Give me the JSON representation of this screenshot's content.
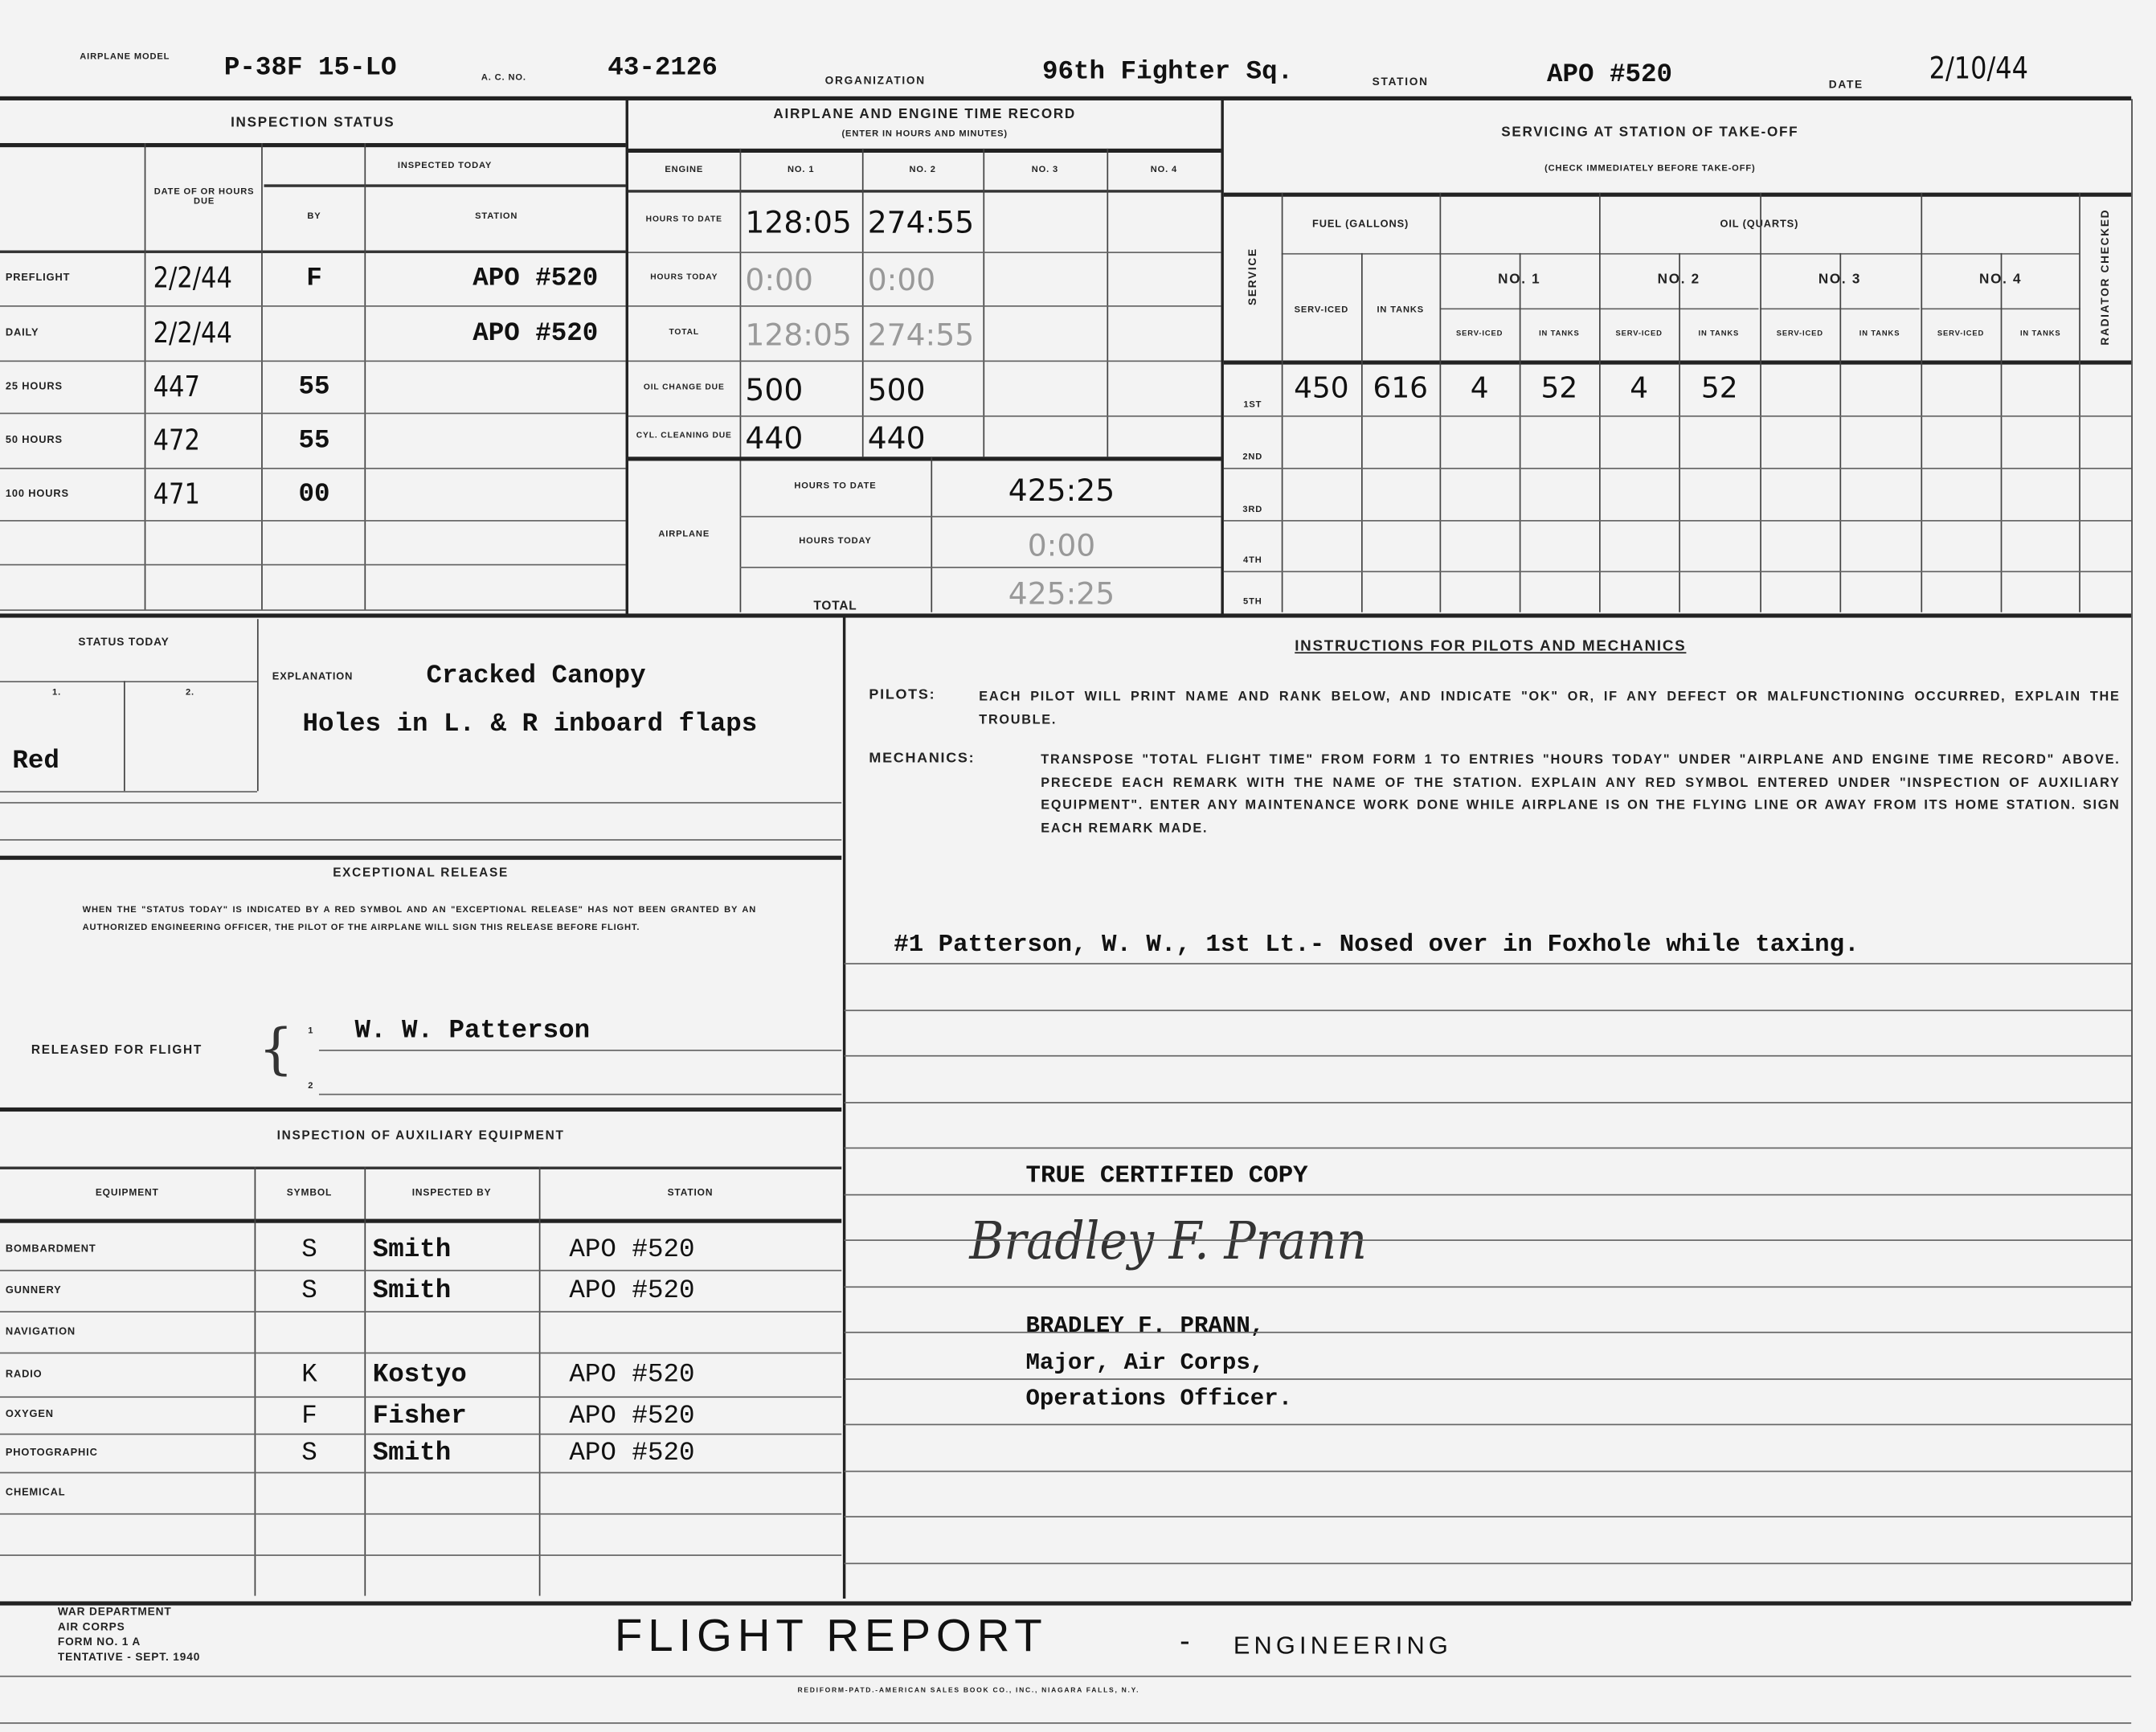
{
  "header": {
    "airplane_model_label": "AIRPLANE MODEL",
    "airplane_model": "P-38F 15-LO",
    "ac_no_label": "A. C. NO.",
    "ac_no": "43-2126",
    "organization_label": "ORGANIZATION",
    "organization": "96th Fighter Sq.",
    "station_label": "STATION",
    "station": "APO #520",
    "date_label": "DATE",
    "date": "2/10/44"
  },
  "inspection_status": {
    "title": "INSPECTION STATUS",
    "col_due": "DATE OF OR HOURS DUE",
    "col_inspected_today": "INSPECTED TODAY",
    "col_by": "BY",
    "col_station": "STATION",
    "rows": [
      {
        "label": "PREFLIGHT",
        "due": "2/2/44",
        "by": "F",
        "station": "APO #520"
      },
      {
        "label": "DAILY",
        "due": "2/2/44",
        "by": "",
        "station": "APO #520"
      },
      {
        "label": "25 HOURS",
        "due": "447",
        "by": "55",
        "station": ""
      },
      {
        "label": "50 HOURS",
        "due": "472",
        "by": "55",
        "station": ""
      },
      {
        "label": "100 HOURS",
        "due": "471",
        "by": "00",
        "station": ""
      }
    ]
  },
  "time_record": {
    "title": "AIRPLANE AND ENGINE TIME RECORD",
    "subtitle": "(ENTER IN HOURS AND MINUTES)",
    "col_engine": "ENGINE",
    "engines": [
      "NO. 1",
      "NO. 2",
      "NO. 3",
      "NO. 4"
    ],
    "rows": [
      {
        "label": "HOURS TO DATE",
        "values": [
          "128:05",
          "274:55",
          "",
          ""
        ]
      },
      {
        "label": "HOURS TODAY",
        "values": [
          "0:00",
          "0:00",
          "",
          ""
        ]
      },
      {
        "label": "TOTAL",
        "values": [
          "128:05",
          "274:55",
          "",
          ""
        ]
      },
      {
        "label": "OIL CHANGE DUE",
        "values": [
          "500",
          "500",
          "",
          ""
        ]
      },
      {
        "label": "CYL. CLEANING DUE",
        "values": [
          "440",
          "440",
          "",
          ""
        ]
      }
    ],
    "airplane_label": "AIRPLANE",
    "airplane_rows": [
      {
        "label": "HOURS TO DATE",
        "value": "425:25"
      },
      {
        "label": "HOURS TODAY",
        "value": "0:00"
      },
      {
        "label": "TOTAL",
        "value": "425:25"
      }
    ]
  },
  "servicing": {
    "title": "SERVICING AT STATION OF TAKE-OFF",
    "subtitle": "(CHECK IMMEDIATELY BEFORE TAKE-OFF)",
    "service_label": "SERVICE",
    "fuel_label": "FUEL (GALLONS)",
    "oil_label": "OIL (QUARTS)",
    "oil_engines": [
      "NO. 1",
      "NO. 2",
      "NO. 3",
      "NO. 4"
    ],
    "serviced_label": "SERV-ICED",
    "in_tanks_label": "IN TANKS",
    "radiator_label": "RADIATOR CHECKED",
    "rows": [
      {
        "label": "1ST",
        "values": [
          "450",
          "616",
          "4",
          "52",
          "4",
          "52",
          "",
          "",
          "",
          "",
          ""
        ]
      },
      {
        "label": "2ND",
        "values": [
          "",
          "",
          "",
          "",
          "",
          "",
          "",
          "",
          "",
          "",
          ""
        ]
      },
      {
        "label": "3RD",
        "values": [
          "",
          "",
          "",
          "",
          "",
          "",
          "",
          "",
          "",
          "",
          ""
        ]
      },
      {
        "label": "4TH",
        "values": [
          "",
          "",
          "",
          "",
          "",
          "",
          "",
          "",
          "",
          "",
          ""
        ]
      },
      {
        "label": "5TH",
        "values": [
          "",
          "",
          "",
          "",
          "",
          "",
          "",
          "",
          "",
          "",
          ""
        ]
      }
    ]
  },
  "status_today": {
    "title": "STATUS TODAY",
    "col1": "1.",
    "col2": "2.",
    "value1": "Red",
    "value2": "",
    "explanation_label": "EXPLANATION",
    "explanation_line1": "Cracked Canopy",
    "explanation_line2": "Holes in L. & R inboard flaps"
  },
  "exceptional_release": {
    "title": "EXCEPTIONAL RELEASE",
    "text": "WHEN THE \"STATUS TODAY\" IS INDICATED BY A RED SYMBOL AND AN \"EXCEPTIONAL RELEASE\" HAS NOT BEEN GRANTED BY AN AUTHORIZED ENGINEERING OFFICER, THE PILOT OF THE AIRPLANE WILL SIGN THIS RELEASE BEFORE FLIGHT.",
    "released_label": "RELEASED FOR FLIGHT",
    "line1_no": "1",
    "line2_no": "2",
    "signature1": "W. W. Patterson"
  },
  "aux_equipment": {
    "title": "INSPECTION OF AUXILIARY EQUIPMENT",
    "col_equipment": "EQUIPMENT",
    "col_symbol": "SYMBOL",
    "col_inspected_by": "INSPECTED BY",
    "col_station": "STATION",
    "rows": [
      {
        "equipment": "BOMBARDMENT",
        "symbol": "S",
        "by": "Smith",
        "station": "APO #520"
      },
      {
        "equipment": "GUNNERY",
        "symbol": "S",
        "by": "Smith",
        "station": "APO #520"
      },
      {
        "equipment": "NAVIGATION",
        "symbol": "",
        "by": "",
        "station": ""
      },
      {
        "equipment": "RADIO",
        "symbol": "K",
        "by": "Kostyo",
        "station": "APO #520"
      },
      {
        "equipment": "OXYGEN",
        "symbol": "F",
        "by": "Fisher",
        "station": "APO #520"
      },
      {
        "equipment": "PHOTOGRAPHIC",
        "symbol": "S",
        "by": "Smith",
        "station": "APO #520"
      },
      {
        "equipment": "CHEMICAL",
        "symbol": "",
        "by": "",
        "station": ""
      }
    ]
  },
  "instructions": {
    "title": "INSTRUCTIONS FOR PILOTS AND MECHANICS",
    "pilots_label": "PILOTS:",
    "pilots_text": "EACH PILOT WILL PRINT NAME AND RANK BELOW, AND INDICATE \"OK\" OR, IF ANY DEFECT OR MALFUNCTIONING OCCURRED, EXPLAIN THE TROUBLE.",
    "mechanics_label": "MECHANICS:",
    "mechanics_text": "TRANSPOSE \"TOTAL FLIGHT TIME\" FROM FORM 1 TO ENTRIES \"HOURS TODAY\" UNDER \"AIRPLANE AND ENGINE TIME RECORD\" ABOVE. PRECEDE EACH REMARK WITH THE NAME OF THE STATION. EXPLAIN ANY RED SYMBOL ENTERED UNDER \"INSPECTION OF AUXILIARY EQUIPMENT\". ENTER ANY MAINTENANCE WORK DONE WHILE AIRPLANE IS ON THE FLYING LINE OR AWAY FROM ITS HOME STATION. SIGN EACH REMARK MADE.",
    "remark": "#1 Patterson, W. W., 1st Lt.- Nosed over in Foxhole while taxing."
  },
  "certification": {
    "title": "TRUE CERTIFIED COPY",
    "signature": "Bradley F. Prann",
    "name": "BRADLEY F. PRANN,",
    "rank": "Major, Air Corps,",
    "position": "Operations Officer."
  },
  "footer": {
    "dept": "WAR DEPARTMENT",
    "corps": "AIR CORPS",
    "form": "FORM NO. 1 A",
    "tentative": "TENTATIVE - SEPT. 1940",
    "title": "FLIGHT REPORT",
    "dash": "-",
    "subtitle": "ENGINEERING",
    "printer": "REDIFORM-PATD.-AMERICAN SALES BOOK CO., INC., NIAGARA FALLS, N.Y."
  }
}
